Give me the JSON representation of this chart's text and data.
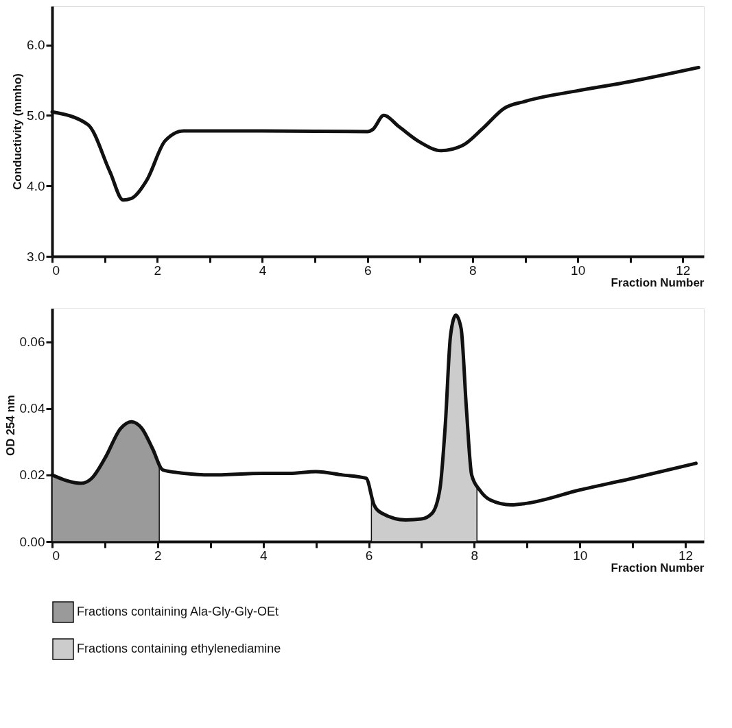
{
  "chart_data": [
    {
      "type": "line",
      "ylabel": "Conductivity (mmho)",
      "xlabel": "Fraction Number",
      "xlim": [
        0,
        12.4
      ],
      "ylim": [
        3.0,
        6.55
      ],
      "xticks": [
        0,
        {
          "value": 1,
          "label": null
        },
        2,
        {
          "value": 3,
          "label": null
        },
        4,
        {
          "value": 5,
          "label": null
        },
        6,
        {
          "value": 7,
          "label": null
        },
        8,
        {
          "value": 9,
          "label": null
        },
        10,
        {
          "value": 11,
          "label": null
        },
        12
      ],
      "yticks": [
        {
          "value": 3,
          "label": "3.0"
        },
        {
          "value": 4,
          "label": "4.0"
        },
        {
          "value": 5,
          "label": "5.0"
        },
        {
          "value": 6,
          "label": "6.0"
        }
      ],
      "grid": false,
      "legend": false,
      "series": [
        {
          "color": "#111111",
          "x": [
            0,
            0.68,
            1.1,
            1.35,
            1.5,
            1.8,
            2.15,
            2.5,
            4,
            6,
            6.1,
            6.31,
            6.6,
            7.0,
            7.4,
            7.8,
            8.2,
            8.6,
            9,
            10,
            11,
            12.3
          ],
          "values": [
            5.05,
            4.87,
            4.2,
            3.8,
            3.82,
            4.08,
            4.64,
            4.78,
            4.78,
            4.77,
            4.8,
            5.0,
            4.84,
            4.62,
            4.5,
            4.57,
            4.82,
            5.1,
            5.2,
            5.35,
            5.48,
            5.68
          ]
        }
      ]
    },
    {
      "type": "line",
      "ylabel": "OD  254 nm",
      "xlabel": "Fraction Number",
      "xlim": [
        0,
        12.35
      ],
      "ylim": [
        0,
        0.07
      ],
      "xticks": [
        0,
        {
          "value": 1,
          "label": null
        },
        2,
        {
          "value": 3,
          "label": null
        },
        4,
        {
          "value": 5,
          "label": null
        },
        6,
        {
          "value": 7,
          "label": null
        },
        8,
        {
          "value": 9,
          "label": null
        },
        10,
        {
          "value": 11,
          "label": null
        },
        12
      ],
      "yticks": [
        {
          "value": 0,
          "label": "0.00"
        },
        {
          "value": 0.02,
          "label": "0.02"
        },
        {
          "value": 0.04,
          "label": "0.04"
        },
        {
          "value": 0.06,
          "label": "0.06"
        }
      ],
      "grid": false,
      "legend": "bottom",
      "series": [
        {
          "type": "area",
          "name": "Fractions containing Ala-Gly-Gly-OEt",
          "color": "#9a9a9a",
          "x": [
            0,
            0.55,
            0.75,
            1.0,
            1.3,
            1.5,
            1.7,
            1.9,
            2.03
          ],
          "values": [
            0.02,
            0.0175,
            0.019,
            0.025,
            0.034,
            0.036,
            0.034,
            0.028,
            0.022
          ]
        },
        {
          "type": "area",
          "name": "Fractions containing ethylenediamine",
          "color": "#cccccc",
          "x": [
            6.05,
            6.25,
            6.7,
            7.0,
            7.2,
            7.35,
            7.45,
            7.55,
            7.65,
            7.75,
            7.85,
            7.95,
            8.05
          ],
          "values": [
            0.012,
            0.0085,
            0.0065,
            0.0068,
            0.0085,
            0.016,
            0.035,
            0.062,
            0.068,
            0.064,
            0.04,
            0.02,
            0.017
          ]
        },
        {
          "color": "#111111",
          "x": [
            0,
            0.55,
            0.75,
            1.0,
            1.3,
            1.5,
            1.7,
            1.9,
            2.1,
            2.5,
            3,
            4,
            4.5,
            5,
            5.5,
            5.95,
            6.1,
            6.25,
            6.7,
            7.0,
            7.2,
            7.35,
            7.45,
            7.55,
            7.65,
            7.75,
            7.85,
            7.95,
            8.1,
            8.3,
            8.7,
            9,
            10,
            11,
            12.2
          ],
          "values": [
            0.02,
            0.0175,
            0.019,
            0.025,
            0.034,
            0.036,
            0.034,
            0.028,
            0.0215,
            0.0205,
            0.02,
            0.0205,
            0.0205,
            0.021,
            0.02,
            0.019,
            0.011,
            0.0085,
            0.0065,
            0.0068,
            0.0085,
            0.016,
            0.035,
            0.062,
            0.068,
            0.064,
            0.04,
            0.02,
            0.0155,
            0.0125,
            0.011,
            0.0115,
            0.0155,
            0.019,
            0.0235
          ]
        }
      ]
    }
  ]
}
